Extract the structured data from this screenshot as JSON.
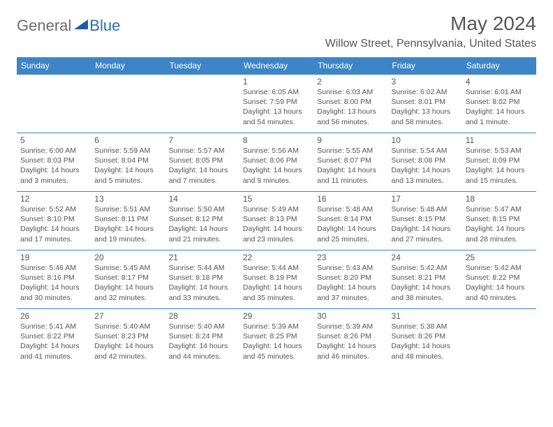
{
  "brand": {
    "part1": "General",
    "part2": "Blue"
  },
  "title": "May 2024",
  "location": "Willow Street, Pennsylvania, United States",
  "colors": {
    "header_bg": "#3d85c6",
    "header_text": "#ffffff",
    "text": "#555555",
    "rule": "#3d85c6",
    "logo_gray": "#6b6b6b",
    "logo_blue": "#2a6db0"
  },
  "typography": {
    "title_fontsize": 28,
    "location_fontsize": 16,
    "dayheader_fontsize": 12,
    "daynum_fontsize": 12,
    "body_fontsize": 10.5
  },
  "days_of_week": [
    "Sunday",
    "Monday",
    "Tuesday",
    "Wednesday",
    "Thursday",
    "Friday",
    "Saturday"
  ],
  "weeks": [
    [
      null,
      null,
      null,
      {
        "n": "1",
        "sunrise": "6:05 AM",
        "sunset": "7:59 PM",
        "daylight": "13 hours and 54 minutes."
      },
      {
        "n": "2",
        "sunrise": "6:03 AM",
        "sunset": "8:00 PM",
        "daylight": "13 hours and 56 minutes."
      },
      {
        "n": "3",
        "sunrise": "6:02 AM",
        "sunset": "8:01 PM",
        "daylight": "13 hours and 58 minutes."
      },
      {
        "n": "4",
        "sunrise": "6:01 AM",
        "sunset": "8:02 PM",
        "daylight": "14 hours and 1 minute."
      }
    ],
    [
      {
        "n": "5",
        "sunrise": "6:00 AM",
        "sunset": "8:03 PM",
        "daylight": "14 hours and 3 minutes."
      },
      {
        "n": "6",
        "sunrise": "5:59 AM",
        "sunset": "8:04 PM",
        "daylight": "14 hours and 5 minutes."
      },
      {
        "n": "7",
        "sunrise": "5:57 AM",
        "sunset": "8:05 PM",
        "daylight": "14 hours and 7 minutes."
      },
      {
        "n": "8",
        "sunrise": "5:56 AM",
        "sunset": "8:06 PM",
        "daylight": "14 hours and 9 minutes."
      },
      {
        "n": "9",
        "sunrise": "5:55 AM",
        "sunset": "8:07 PM",
        "daylight": "14 hours and 11 minutes."
      },
      {
        "n": "10",
        "sunrise": "5:54 AM",
        "sunset": "8:08 PM",
        "daylight": "14 hours and 13 minutes."
      },
      {
        "n": "11",
        "sunrise": "5:53 AM",
        "sunset": "8:09 PM",
        "daylight": "14 hours and 15 minutes."
      }
    ],
    [
      {
        "n": "12",
        "sunrise": "5:52 AM",
        "sunset": "8:10 PM",
        "daylight": "14 hours and 17 minutes."
      },
      {
        "n": "13",
        "sunrise": "5:51 AM",
        "sunset": "8:11 PM",
        "daylight": "14 hours and 19 minutes."
      },
      {
        "n": "14",
        "sunrise": "5:50 AM",
        "sunset": "8:12 PM",
        "daylight": "14 hours and 21 minutes."
      },
      {
        "n": "15",
        "sunrise": "5:49 AM",
        "sunset": "8:13 PM",
        "daylight": "14 hours and 23 minutes."
      },
      {
        "n": "16",
        "sunrise": "5:48 AM",
        "sunset": "8:14 PM",
        "daylight": "14 hours and 25 minutes."
      },
      {
        "n": "17",
        "sunrise": "5:48 AM",
        "sunset": "8:15 PM",
        "daylight": "14 hours and 27 minutes."
      },
      {
        "n": "18",
        "sunrise": "5:47 AM",
        "sunset": "8:15 PM",
        "daylight": "14 hours and 28 minutes."
      }
    ],
    [
      {
        "n": "19",
        "sunrise": "5:46 AM",
        "sunset": "8:16 PM",
        "daylight": "14 hours and 30 minutes."
      },
      {
        "n": "20",
        "sunrise": "5:45 AM",
        "sunset": "8:17 PM",
        "daylight": "14 hours and 32 minutes."
      },
      {
        "n": "21",
        "sunrise": "5:44 AM",
        "sunset": "8:18 PM",
        "daylight": "14 hours and 33 minutes."
      },
      {
        "n": "22",
        "sunrise": "5:44 AM",
        "sunset": "8:19 PM",
        "daylight": "14 hours and 35 minutes."
      },
      {
        "n": "23",
        "sunrise": "5:43 AM",
        "sunset": "8:20 PM",
        "daylight": "14 hours and 37 minutes."
      },
      {
        "n": "24",
        "sunrise": "5:42 AM",
        "sunset": "8:21 PM",
        "daylight": "14 hours and 38 minutes."
      },
      {
        "n": "25",
        "sunrise": "5:42 AM",
        "sunset": "8:22 PM",
        "daylight": "14 hours and 40 minutes."
      }
    ],
    [
      {
        "n": "26",
        "sunrise": "5:41 AM",
        "sunset": "8:22 PM",
        "daylight": "14 hours and 41 minutes."
      },
      {
        "n": "27",
        "sunrise": "5:40 AM",
        "sunset": "8:23 PM",
        "daylight": "14 hours and 42 minutes."
      },
      {
        "n": "28",
        "sunrise": "5:40 AM",
        "sunset": "8:24 PM",
        "daylight": "14 hours and 44 minutes."
      },
      {
        "n": "29",
        "sunrise": "5:39 AM",
        "sunset": "8:25 PM",
        "daylight": "14 hours and 45 minutes."
      },
      {
        "n": "30",
        "sunrise": "5:39 AM",
        "sunset": "8:26 PM",
        "daylight": "14 hours and 46 minutes."
      },
      {
        "n": "31",
        "sunrise": "5:38 AM",
        "sunset": "8:26 PM",
        "daylight": "14 hours and 48 minutes."
      },
      null
    ]
  ],
  "labels": {
    "sunrise": "Sunrise:",
    "sunset": "Sunset:",
    "daylight": "Daylight:"
  }
}
